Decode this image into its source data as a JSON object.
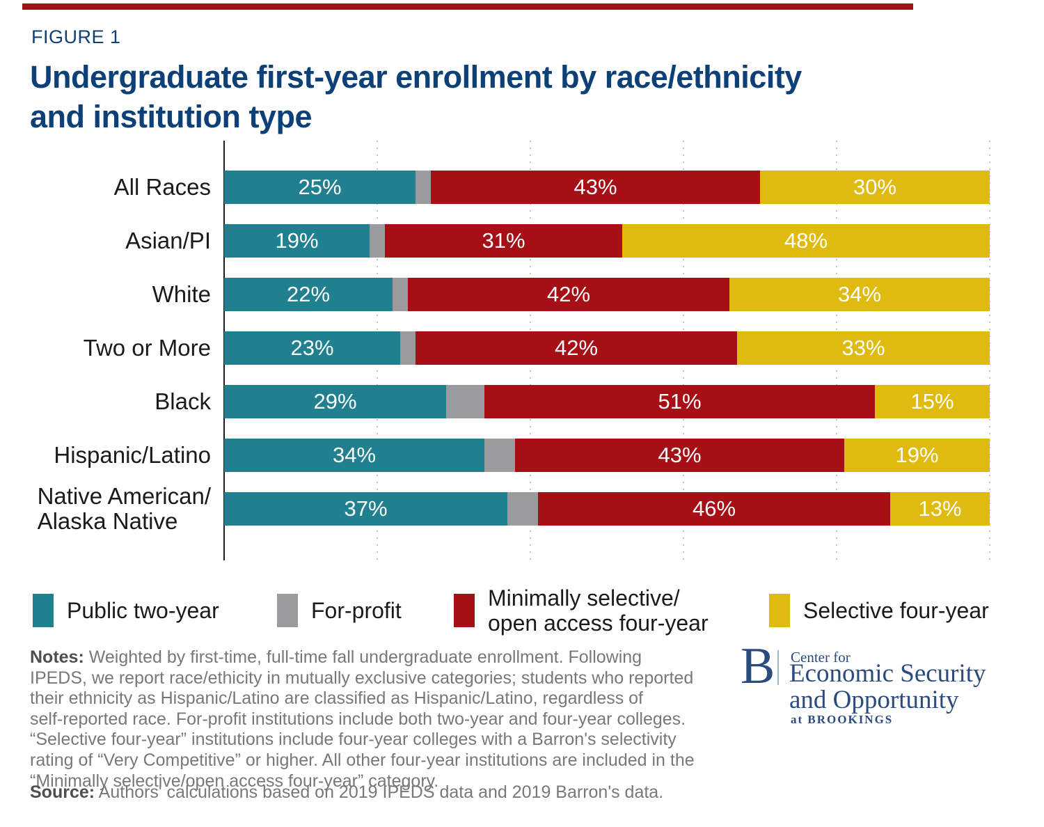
{
  "figure_label": "FIGURE 1",
  "title_lines": [
    "Undergraduate first-year enrollment by race/ethnicity",
    "and institution type"
  ],
  "colors": {
    "navy": "#0D4077",
    "teal": "#20808F",
    "gray": "#9B9B9D",
    "red": "#A50F15",
    "yellow": "#DFBB10",
    "top_rule": "#A50F15"
  },
  "chart_data": {
    "type": "bar",
    "stacked": true,
    "orientation": "horizontal",
    "xlim": [
      0,
      100
    ],
    "unit": "percent",
    "value_suffix": "%",
    "grid": "dotted vertical lines",
    "gridlines_pct": [
      20,
      40,
      60,
      80,
      100
    ],
    "categories": [
      "All Races",
      "Asian/PI",
      "White",
      "Two or More",
      "Black",
      "Hispanic/Latino",
      "Native American/Alaska Native"
    ],
    "categories_display": [
      [
        "All Races"
      ],
      [
        "Asian/PI"
      ],
      [
        "White"
      ],
      [
        "Two or More"
      ],
      [
        "Black"
      ],
      [
        "Hispanic/Latino"
      ],
      [
        "Native American/",
        "Alaska Native"
      ]
    ],
    "series": [
      {
        "key": "public-two-year",
        "name": "Public two-year",
        "color": "#20808F",
        "show_labels": true,
        "values": [
          25,
          19,
          22,
          23,
          29,
          34,
          37
        ]
      },
      {
        "key": "for-profit",
        "name": "For-profit",
        "color": "#9B9B9D",
        "show_labels": false,
        "values": [
          2,
          2,
          2,
          2,
          5,
          4,
          4
        ]
      },
      {
        "key": "minimally-selective-open-access-four-year",
        "name": "Minimally selective/open access four-year",
        "color": "#A50F15",
        "show_labels": true,
        "values": [
          43,
          31,
          42,
          42,
          51,
          43,
          46
        ]
      },
      {
        "key": "selective-four-year",
        "name": "Selective four-year",
        "color": "#DFBB10",
        "show_labels": true,
        "values": [
          30,
          48,
          34,
          33,
          15,
          19,
          13
        ]
      }
    ]
  },
  "legend": {
    "items": [
      {
        "label_lines": [
          "Public two-year"
        ],
        "color": "#20808F"
      },
      {
        "label_lines": [
          "For-profit"
        ],
        "color": "#9B9B9D"
      },
      {
        "label_lines": [
          "Minimally selective/",
          "open access four-year"
        ],
        "color": "#A50F15"
      },
      {
        "label_lines": [
          "Selective four-year"
        ],
        "color": "#DFBB10"
      }
    ]
  },
  "notes": {
    "label": "Notes:",
    "lines": [
      "Weighted by first-time, full-time fall undergraduate enrollment. Following",
      "IPEDS, we report race/ethicity in mutually exclusive categories; students who reported",
      "their ethnicity as Hispanic/Latino are classified as Hispanic/Latino, regardless of",
      "self-reported race. For-profit institutions include both two-year and four-year colleges.",
      "“Selective four-year” institutions include four-year colleges with a Barron's selectivity",
      "rating of “Very Competitive” or higher. All other four-year institutions are included in the",
      "“Minimally selective/open access four-year” category."
    ]
  },
  "source": {
    "label": "Source:",
    "text": "Authors' calculations based on 2019 IPEDS data and 2019 Barron's data."
  },
  "logo": {
    "b_mark": "B",
    "center_for": "Center for",
    "name_line1": "Economic Security",
    "name_line2": "and Opportunity",
    "at_brookings": "at BROOKINGS"
  }
}
